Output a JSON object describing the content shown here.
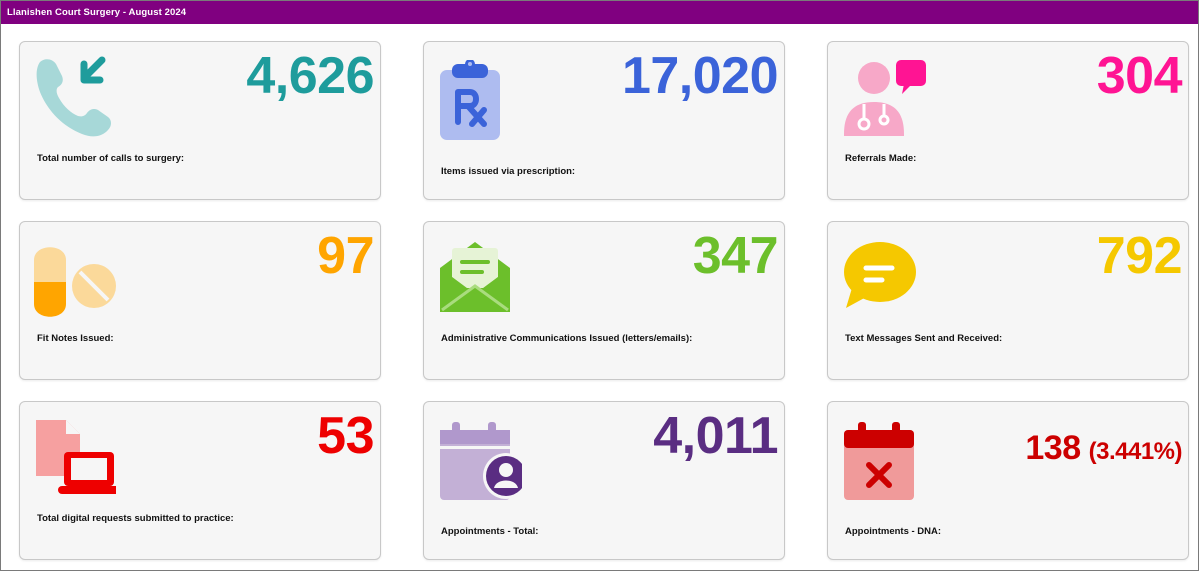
{
  "title": "Llanishen Court Surgery - August 2024",
  "cards": [
    {
      "value": "4,626",
      "label": "Total number of calls to surgery:",
      "color": "#1e9c9c",
      "icon": "phone-incoming-icon"
    },
    {
      "value": "17,020",
      "label": "Items issued via prescription:",
      "color": "#3b63d9",
      "icon": "prescription-clipboard-icon"
    },
    {
      "value": "304",
      "label": "Referrals Made:",
      "color": "#ff1493",
      "icon": "doctor-chat-icon"
    },
    {
      "value": "97",
      "label": "Fit Notes Issued:",
      "color": "#ffa500",
      "icon": "pills-icon"
    },
    {
      "value": "347",
      "label": "Administrative Communications Issued (letters/emails):",
      "color": "#6cbf2b",
      "icon": "open-envelope-icon"
    },
    {
      "value": "792",
      "label": "Text Messages Sent and Received:",
      "color": "#f5c800",
      "icon": "speech-bubble-icon"
    },
    {
      "value": "53",
      "label": "Total digital requests submitted to practice:",
      "color": "#ee0000",
      "icon": "document-laptop-icon"
    },
    {
      "value": "4,011",
      "label": "Appointments - Total:",
      "color": "#5a2d82",
      "icon": "calendar-user-icon"
    },
    {
      "value": "138",
      "value_extra": "(3.441%)",
      "label": "Appointments - DNA:",
      "color": "#cc0000",
      "icon": "calendar-cross-icon"
    }
  ]
}
